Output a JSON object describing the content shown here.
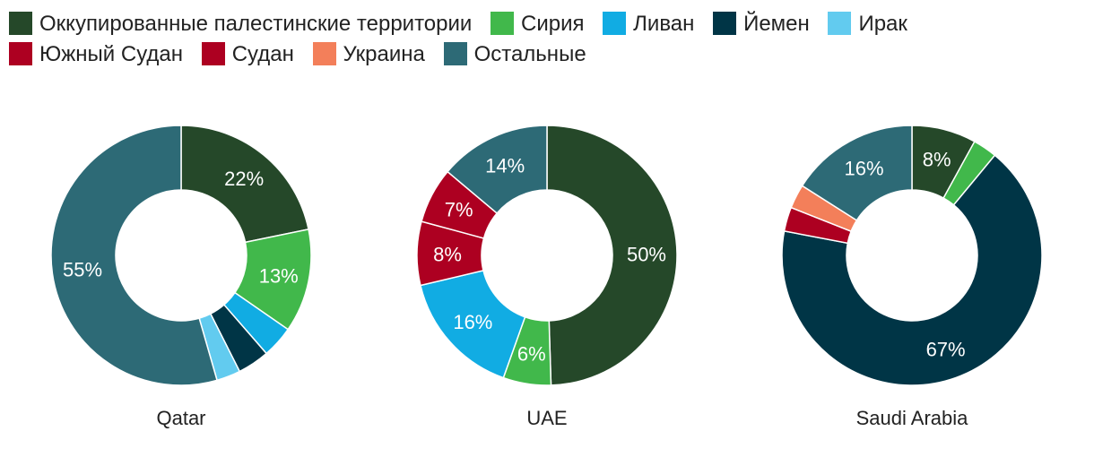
{
  "chart_data": [
    {
      "type": "pie",
      "title": "Qatar",
      "slices": [
        {
          "name": "Оккупированные палестинские территории",
          "value": 22,
          "label": "22%"
        },
        {
          "name": "Сирия",
          "value": 13,
          "label": "13%"
        },
        {
          "name": "Ливан",
          "value": 4,
          "label": ""
        },
        {
          "name": "Йемен",
          "value": 4,
          "label": ""
        },
        {
          "name": "Ирак",
          "value": 3,
          "label": ""
        },
        {
          "name": "Остальные",
          "value": 55,
          "label": "55%"
        }
      ]
    },
    {
      "type": "pie",
      "title": "UAE",
      "slices": [
        {
          "name": "Оккупированные палестинские территории",
          "value": 50,
          "label": "50%"
        },
        {
          "name": "Сирия",
          "value": 6,
          "label": "6%"
        },
        {
          "name": "Ливан",
          "value": 16,
          "label": "16%"
        },
        {
          "name": "Южный Судан",
          "value": 8,
          "label": "8%"
        },
        {
          "name": "Судан",
          "value": 7,
          "label": "7%"
        },
        {
          "name": "Остальные",
          "value": 14,
          "label": "14%"
        }
      ]
    },
    {
      "type": "pie",
      "title": "Saudi Arabia",
      "slices": [
        {
          "name": "Оккупированные палестинские территории",
          "value": 8,
          "label": "8%"
        },
        {
          "name": "Сирия",
          "value": 3,
          "label": ""
        },
        {
          "name": "Йемен",
          "value": 67,
          "label": "67%"
        },
        {
          "name": "Судан",
          "value": 3,
          "label": ""
        },
        {
          "name": "Украина",
          "value": 3,
          "label": ""
        },
        {
          "name": "Остальные",
          "value": 16,
          "label": "16%"
        }
      ]
    }
  ],
  "legend": [
    {
      "name": "Оккупированные палестинские территории",
      "color": "#254829"
    },
    {
      "name": "Сирия",
      "color": "#41b84b"
    },
    {
      "name": "Ливан",
      "color": "#11ace3"
    },
    {
      "name": "Йемен",
      "color": "#003546"
    },
    {
      "name": "Ирак",
      "color": "#62cbef"
    },
    {
      "name": "Южный Судан",
      "color": "#ad0021"
    },
    {
      "name": "Судан",
      "color": "#ad0021"
    },
    {
      "name": "Украина",
      "color": "#f37f5a"
    },
    {
      "name": "Остальные",
      "color": "#2d6a76"
    }
  ]
}
